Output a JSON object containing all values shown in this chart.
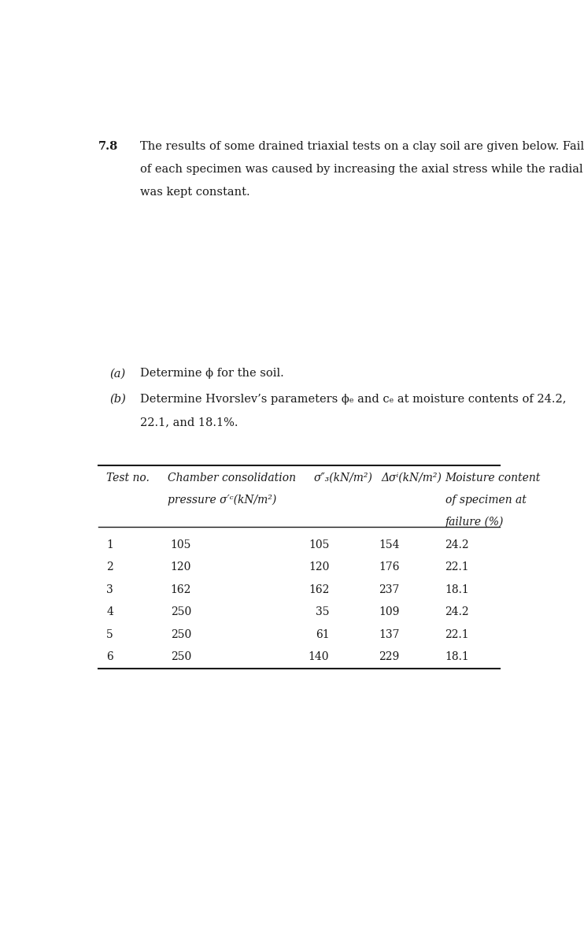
{
  "problem_number": "7.8",
  "intro_line1": "The results of some drained triaxial tests on a clay soil are given below. Failure",
  "intro_line2": "of each specimen was caused by increasing the axial stress while the radial stress",
  "intro_line3": "was kept constant.",
  "rows": [
    [
      "1",
      "105",
      "105",
      "154",
      "24.2"
    ],
    [
      "2",
      "120",
      "120",
      "176",
      "22.1"
    ],
    [
      "3",
      "162",
      "162",
      "237",
      "18.1"
    ],
    [
      "4",
      "250",
      "35",
      "109",
      "24.2"
    ],
    [
      "5",
      "250",
      "61",
      "137",
      "22.1"
    ],
    [
      "6",
      "250",
      "140",
      "229",
      "18.1"
    ]
  ],
  "background_color": "#ffffff",
  "text_color": "#1a1a1a",
  "font_size_intro": 10.5,
  "font_size_parts": 10.5,
  "font_size_table": 10.0
}
